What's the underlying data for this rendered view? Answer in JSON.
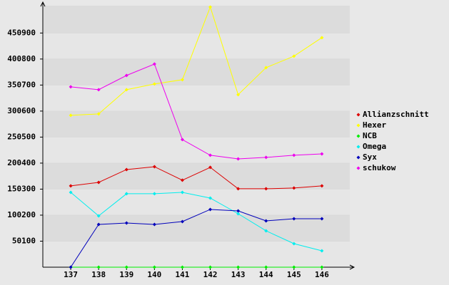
{
  "chart_data": {
    "type": "line",
    "categories": [
      "137",
      "138",
      "139",
      "140",
      "141",
      "142",
      "143",
      "144",
      "145",
      "146"
    ],
    "ylim": [
      0,
      503500
    ],
    "yticks": [
      50100,
      100200,
      150300,
      200400,
      250500,
      300600,
      350700,
      400800,
      450900
    ],
    "grid": true,
    "legend": "right",
    "series": [
      {
        "name": "Allianzschnitt",
        "color": "#dd0000",
        "values": [
          156500,
          163300,
          188000,
          193500,
          167500,
          192200,
          151000,
          151000,
          152400,
          156500
        ]
      },
      {
        "name": "Hexer",
        "color": "#ffff00",
        "values": [
          292400,
          295100,
          341800,
          352800,
          361000,
          501000,
          332200,
          384300,
          406300,
          442000
        ]
      },
      {
        "name": "NCB",
        "color": "#00ee00",
        "values": [
          0,
          0,
          0,
          0,
          0,
          0,
          0,
          0,
          0,
          0
        ]
      },
      {
        "name": "Omega",
        "color": "#00eeee",
        "values": [
          144100,
          98800,
          141400,
          141400,
          144100,
          133100,
          102900,
          70000,
          45300,
          31600
        ]
      },
      {
        "name": "Syx",
        "color": "#0000bb",
        "values": [
          0,
          82400,
          85100,
          82400,
          87800,
          111200,
          108400,
          89200,
          93300,
          93300
        ]
      },
      {
        "name": "schukow",
        "color": "#ee00ee",
        "values": [
          347300,
          341800,
          369200,
          391200,
          245700,
          215500,
          208600,
          211400,
          215500,
          218200
        ]
      }
    ]
  }
}
